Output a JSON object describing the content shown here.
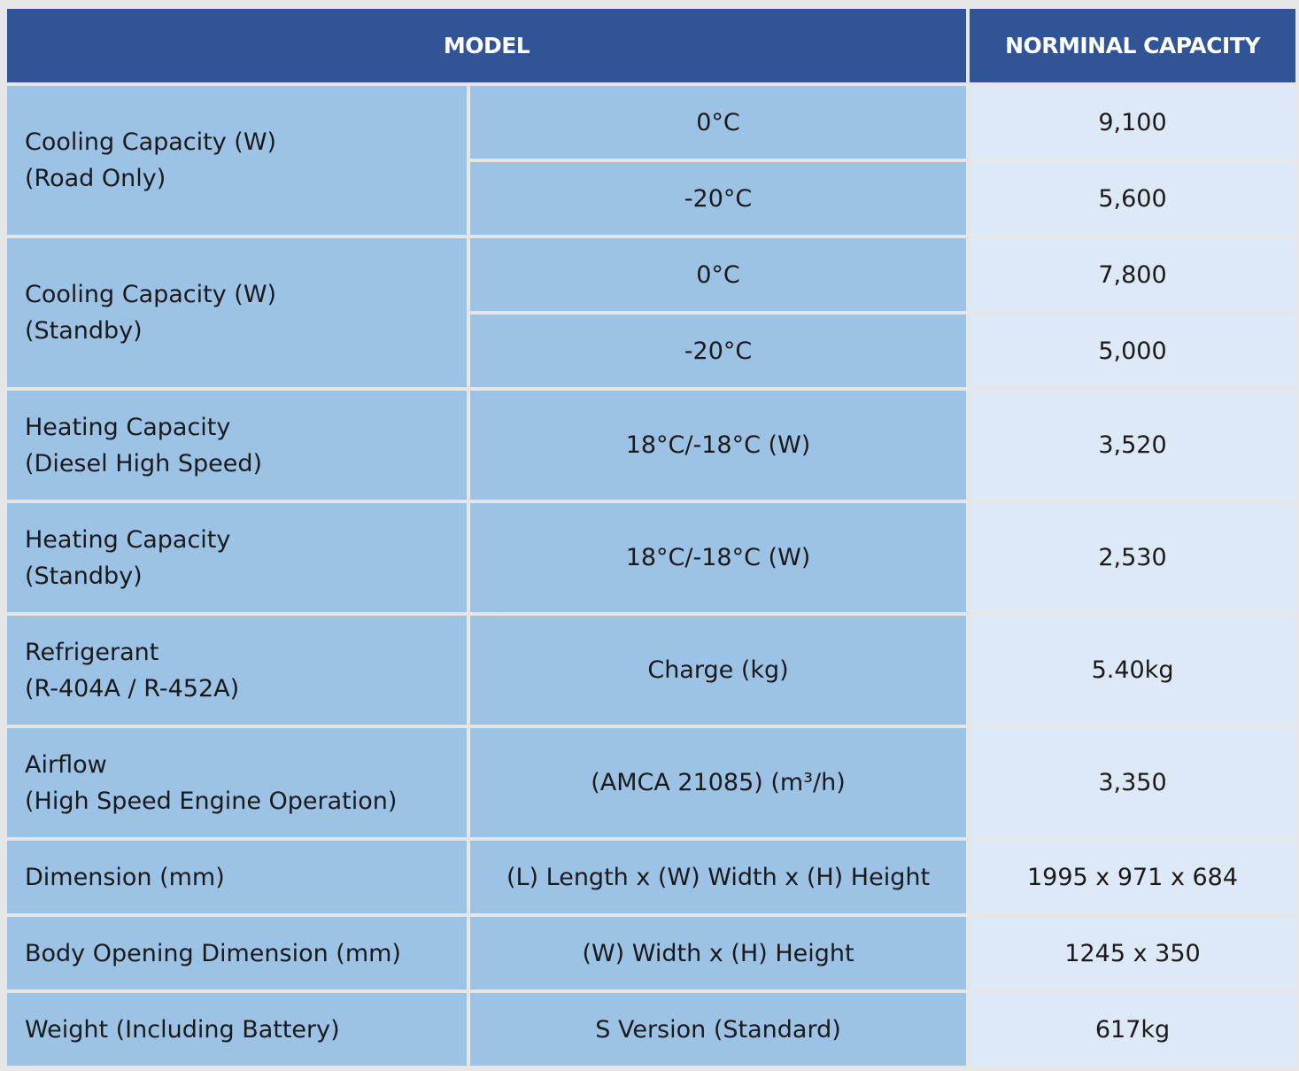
{
  "header": {
    "model": "MODEL",
    "capacity": "NORMINAL CAPACITY"
  },
  "rows": [
    {
      "label": [
        "Cooling Capacity (W)",
        "(Road Only)"
      ],
      "conditions": [
        "0°C",
        "-20°C"
      ],
      "values": [
        "9,100",
        "5,600"
      ]
    },
    {
      "label": [
        "Cooling Capacity (W)",
        "(Standby)"
      ],
      "conditions": [
        "0°C",
        "-20°C"
      ],
      "values": [
        "7,800",
        "5,000"
      ]
    },
    {
      "label": [
        "Heating Capacity",
        "(Diesel High Speed)"
      ],
      "conditions": [
        "18°C/-18°C (W)"
      ],
      "values": [
        "3,520"
      ]
    },
    {
      "label": [
        "Heating Capacity",
        "(Standby)"
      ],
      "conditions": [
        "18°C/-18°C (W)"
      ],
      "values": [
        "2,530"
      ]
    },
    {
      "label": [
        "Refrigerant",
        "(R-404A / R-452A)"
      ],
      "conditions": [
        "Charge (kg)"
      ],
      "values": [
        "5.40kg"
      ]
    },
    {
      "label": [
        "Airflow",
        "(High Speed Engine Operation)"
      ],
      "conditions": [
        "(AMCA 21085) (m³/h)"
      ],
      "values": [
        "3,350"
      ]
    },
    {
      "label": [
        "Dimension (mm)"
      ],
      "conditions": [
        "(L) Length x (W) Width x (H) Height"
      ],
      "values": [
        "1995 x 971 x 684"
      ]
    },
    {
      "label": [
        "Body Opening Dimension (mm)"
      ],
      "conditions": [
        "(W) Width x (H) Height"
      ],
      "values": [
        "1245 x 350"
      ]
    },
    {
      "label": [
        "Weight (Including Battery)"
      ],
      "conditions": [
        "S Version (Standard)"
      ],
      "values": [
        "617kg"
      ]
    }
  ]
}
